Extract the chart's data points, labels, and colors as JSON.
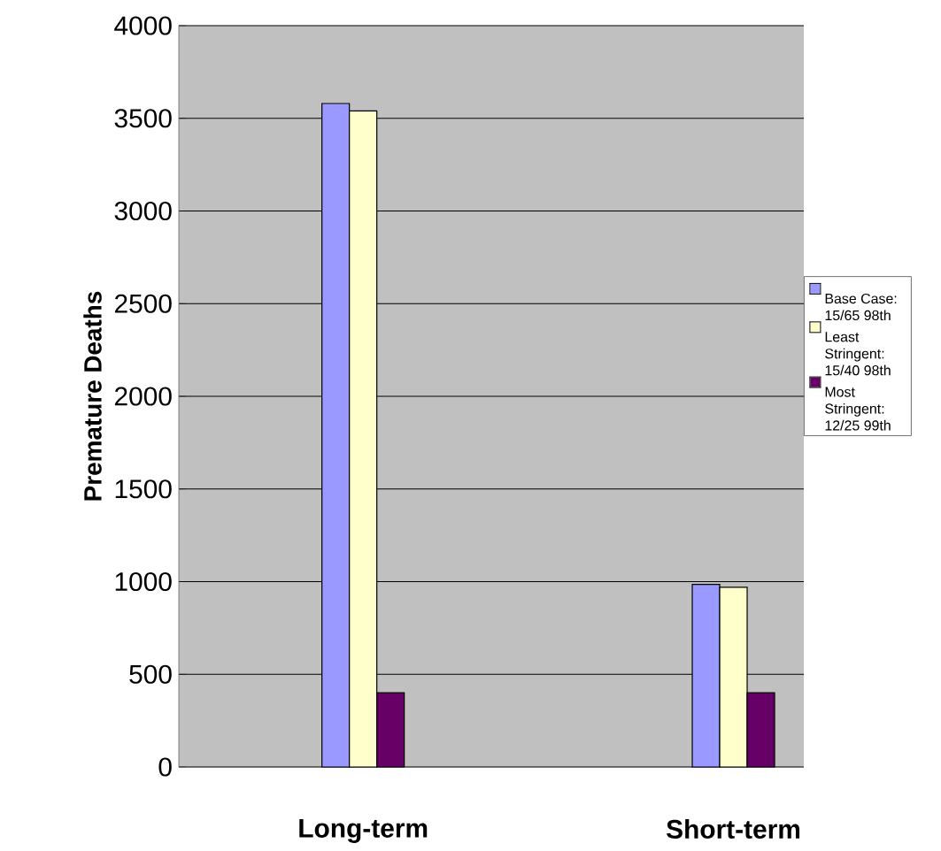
{
  "chart_data": {
    "type": "bar",
    "ylabel": "Premature Deaths",
    "categories": [
      "Long-term",
      "Short-term"
    ],
    "series": [
      {
        "name": "Base Case: 15/65 98th",
        "color": "#9999ff",
        "values": [
          3580,
          985
        ]
      },
      {
        "name": "Least Stringent: 15/40 98th",
        "color": "#ffffcc",
        "values": [
          3540,
          970
        ]
      },
      {
        "name": "Most Stringent: 12/25 99th",
        "color": "#660066",
        "values": [
          400,
          400
        ]
      }
    ],
    "ylim": [
      0,
      4000
    ],
    "yticks": [
      0,
      500,
      1000,
      1500,
      2000,
      2500,
      3000,
      3500,
      4000
    ],
    "grid": "y",
    "legend": "right"
  }
}
